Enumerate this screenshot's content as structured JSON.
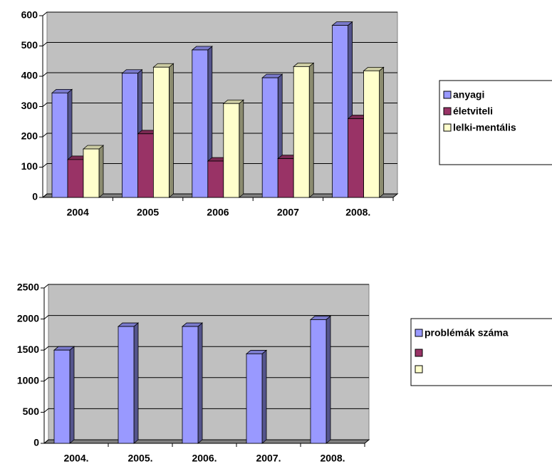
{
  "chart_data": [
    {
      "type": "bar",
      "categories": [
        "2004",
        "2005",
        "2006",
        "2007",
        "2008."
      ],
      "series": [
        {
          "name": "anyagi",
          "color": "#9999ff",
          "values": [
            345,
            410,
            487,
            395,
            568
          ]
        },
        {
          "name": "életviteli",
          "color": "#993366",
          "values": [
            125,
            210,
            120,
            128,
            260
          ]
        },
        {
          "name": "lelki-mentális",
          "color": "#ffffcc",
          "values": [
            160,
            430,
            310,
            432,
            418
          ]
        }
      ],
      "ylim": [
        0,
        600
      ],
      "yticks": [
        0,
        100,
        200,
        300,
        400,
        500,
        600
      ],
      "grid": true,
      "legend": "right"
    },
    {
      "type": "bar",
      "categories": [
        "2004.",
        "2005.",
        "2006.",
        "2007.",
        "2008."
      ],
      "series": [
        {
          "name": "problémák száma",
          "color": "#9999ff",
          "values": [
            1500,
            1880,
            1880,
            1440,
            1990
          ]
        }
      ],
      "ylim": [
        0,
        2500
      ],
      "yticks": [
        0,
        500,
        1000,
        1500,
        2000,
        2500
      ],
      "grid": true,
      "legend": "right"
    }
  ]
}
